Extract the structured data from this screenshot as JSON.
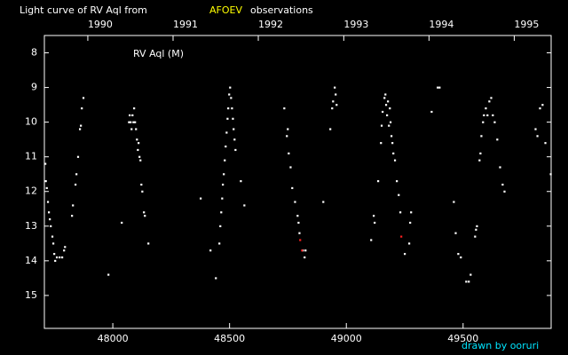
{
  "chart_data": {
    "type": "scatter",
    "title": [
      "Light curve of RV Aql from",
      "AFOEV",
      "observations"
    ],
    "label": "RV Aql (M)",
    "credit": "drawn by ooruri",
    "xlim": [
      47707,
      49877
    ],
    "ylim": [
      7.5,
      15.95
    ],
    "y_inverted": true,
    "xticks": [
      48000,
      48500,
      49000,
      49500
    ],
    "yticks": [
      8,
      9,
      10,
      11,
      12,
      13,
      14,
      15
    ],
    "x2ticks": [
      {
        "value": 47893,
        "label": "1990"
      },
      {
        "value": 48258,
        "label": "1991"
      },
      {
        "value": 48623,
        "label": "1992"
      },
      {
        "value": 48989,
        "label": "1993"
      },
      {
        "value": 49354,
        "label": "1994"
      },
      {
        "value": 49719,
        "label": "1995"
      }
    ],
    "series": [
      {
        "color": "#ffffff",
        "x": [
          47711,
          47713,
          47717,
          47722,
          47726,
          47730,
          47734,
          47741,
          47745,
          47749,
          47753,
          47760,
          47772,
          47783,
          47791,
          47795,
          47825,
          47829,
          47840,
          47844,
          47851,
          47859,
          47863,
          47867,
          47874,
          47981,
          48038,
          48069,
          48072,
          48076,
          48080,
          48084,
          48088,
          48091,
          48095,
          48099,
          48103,
          48107,
          48110,
          48114,
          48118,
          48122,
          48126,
          48133,
          48137,
          48152,
          48376,
          48418,
          48441,
          48456,
          48460,
          48464,
          48468,
          48471,
          48475,
          48479,
          48483,
          48487,
          48491,
          48494,
          48498,
          48502,
          48506,
          48510,
          48514,
          48517,
          48521,
          48525,
          48548,
          48563,
          48734,
          48745,
          48749,
          48753,
          48761,
          48768,
          48780,
          48791,
          48795,
          48799,
          48814,
          48821,
          48825,
          48901,
          48931,
          48939,
          48943,
          48950,
          48954,
          48958,
          49106,
          49117,
          49121,
          49136,
          49148,
          49151,
          49155,
          49163,
          49167,
          49170,
          49174,
          49178,
          49182,
          49186,
          49189,
          49193,
          49197,
          49201,
          49208,
          49216,
          49224,
          49231,
          49250,
          49269,
          49273,
          49277,
          49365,
          49391,
          49399,
          49460,
          49468,
          49479,
          49490,
          49513,
          49524,
          49532,
          49551,
          49555,
          49559,
          49570,
          49574,
          49578,
          49585,
          49589,
          49597,
          49604,
          49612,
          49620,
          49627,
          49635,
          49646,
          49658,
          49669,
          49677,
          49810,
          49818,
          49829,
          49840,
          49852,
          49875
        ],
        "values": [
          11.2,
          11.7,
          11.9,
          12.3,
          12.6,
          12.8,
          13.0,
          13.3,
          13.5,
          13.8,
          14.0,
          13.9,
          13.9,
          13.9,
          13.7,
          13.6,
          12.7,
          12.4,
          11.8,
          11.5,
          11.0,
          10.2,
          10.1,
          9.6,
          9.3,
          14.4,
          12.9,
          10.0,
          9.8,
          10.0,
          10.2,
          9.8,
          10.0,
          9.6,
          10.0,
          10.2,
          10.5,
          10.8,
          10.6,
          11.0,
          11.1,
          11.8,
          12.0,
          12.6,
          12.7,
          13.5,
          12.2,
          13.7,
          14.5,
          13.5,
          13.0,
          12.6,
          12.2,
          11.8,
          11.5,
          11.1,
          10.7,
          10.3,
          9.9,
          9.6,
          9.2,
          9.0,
          9.3,
          9.6,
          9.9,
          10.2,
          10.5,
          10.8,
          11.7,
          12.4,
          9.6,
          10.4,
          10.2,
          10.9,
          11.3,
          11.9,
          12.3,
          12.7,
          12.9,
          13.2,
          13.7,
          13.9,
          13.7,
          12.3,
          10.2,
          9.6,
          9.4,
          9.0,
          9.2,
          9.5,
          13.4,
          12.7,
          12.9,
          11.7,
          10.6,
          10.1,
          9.7,
          9.3,
          9.2,
          9.5,
          9.8,
          9.4,
          10.1,
          9.6,
          10.0,
          10.4,
          10.6,
          10.9,
          11.1,
          11.7,
          12.1,
          12.6,
          13.8,
          13.5,
          12.9,
          12.6,
          9.7,
          9.0,
          9.0,
          12.3,
          13.2,
          13.8,
          13.9,
          14.6,
          14.6,
          14.4,
          13.3,
          13.1,
          13.0,
          11.1,
          10.9,
          10.4,
          10.0,
          9.8,
          9.6,
          9.8,
          9.4,
          9.3,
          9.8,
          10.0,
          10.5,
          11.3,
          11.8,
          12.0,
          10.2,
          10.4,
          9.6,
          9.5,
          10.6,
          11.5
        ]
      },
      {
        "color": "#ff2020",
        "x": [
          48802,
          48810,
          49235
        ],
        "values": [
          13.4,
          13.7,
          13.3
        ]
      }
    ]
  }
}
